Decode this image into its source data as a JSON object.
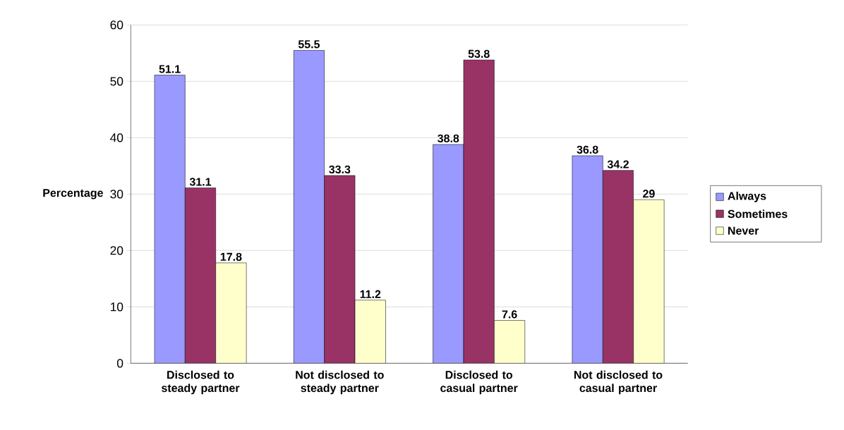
{
  "chart_data": {
    "type": "bar",
    "ylabel": "Percentage",
    "categories": [
      "Disclosed to steady partner",
      "Not disclosed to steady partner",
      "Disclosed to casual partner",
      "Not disclosed to casual partner"
    ],
    "series": [
      {
        "name": "Always",
        "color": "#9999ff",
        "values": [
          51.1,
          55.5,
          38.8,
          36.8
        ]
      },
      {
        "name": "Sometimes",
        "color": "#993366",
        "values": [
          31.1,
          33.3,
          53.8,
          34.2
        ]
      },
      {
        "name": "Never",
        "color": "#ffffcc",
        "values": [
          17.8,
          11.2,
          7.6,
          29
        ]
      }
    ],
    "ylim": [
      0,
      60
    ],
    "yticks": [
      0,
      10,
      20,
      30,
      40,
      50,
      60
    ],
    "grid": "y",
    "legend": "right",
    "data_labels": true
  }
}
